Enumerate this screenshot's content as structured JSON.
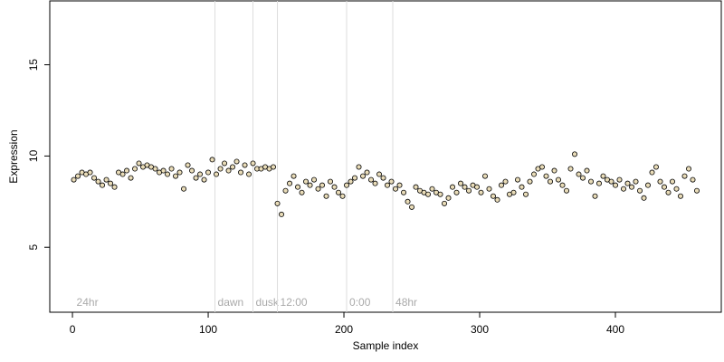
{
  "chart_data": {
    "type": "scatter",
    "xlabel": "Sample index",
    "ylabel": "Expression",
    "xlim": [
      -16.7,
      478
    ],
    "ylim": [
      1.44,
      18.5
    ],
    "xticks": [
      0,
      100,
      200,
      300,
      400
    ],
    "yticks": [
      5,
      10,
      15
    ],
    "marker_edge": "#000000",
    "marker_fill": "#e9dcb8",
    "annotation_color": "#dddddd",
    "annotations": [
      {
        "x": 1,
        "label": "24hr",
        "line": false
      },
      {
        "x": 105,
        "label": "dawn",
        "line": true
      },
      {
        "x": 133,
        "label": "dusk",
        "line": true
      },
      {
        "x": 151,
        "label": "12:00",
        "line": true
      },
      {
        "x": 202,
        "label": "0:00",
        "line": true
      },
      {
        "x": 236,
        "label": "48hr",
        "line": true
      }
    ],
    "x": [
      1,
      4,
      7,
      10,
      13,
      16,
      19,
      22,
      25,
      28,
      31,
      34,
      37,
      40,
      43,
      46,
      49,
      52,
      55,
      58,
      61,
      64,
      67,
      70,
      73,
      76,
      79,
      82,
      85,
      88,
      91,
      94,
      97,
      100,
      103,
      106,
      109,
      112,
      115,
      118,
      121,
      124,
      127,
      130,
      133,
      136,
      139,
      142,
      145,
      148,
      151,
      154,
      157,
      160,
      163,
      166,
      169,
      172,
      175,
      178,
      181,
      184,
      187,
      190,
      193,
      196,
      199,
      202,
      205,
      208,
      211,
      214,
      217,
      220,
      223,
      226,
      229,
      232,
      235,
      238,
      241,
      244,
      247,
      250,
      253,
      256,
      259,
      262,
      265,
      268,
      271,
      274,
      277,
      280,
      283,
      286,
      289,
      292,
      295,
      298,
      301,
      304,
      307,
      310,
      313,
      316,
      319,
      322,
      325,
      328,
      331,
      334,
      337,
      340,
      343,
      346,
      349,
      352,
      355,
      358,
      361,
      364,
      367,
      370,
      373,
      376,
      379,
      382,
      385,
      388,
      391,
      394,
      397,
      400,
      403,
      406,
      409,
      412,
      415,
      418,
      421,
      424,
      427,
      430,
      433,
      436,
      439,
      442,
      445,
      448,
      451,
      454,
      457,
      460
    ],
    "values": [
      8.7,
      8.9,
      9.1,
      9.0,
      9.1,
      8.8,
      8.6,
      8.4,
      8.7,
      8.5,
      8.3,
      9.1,
      9.0,
      9.2,
      8.8,
      9.3,
      9.6,
      9.4,
      9.5,
      9.4,
      9.3,
      9.1,
      9.2,
      9.0,
      9.3,
      8.9,
      9.1,
      8.2,
      9.5,
      9.2,
      8.8,
      9.0,
      8.7,
      9.1,
      9.8,
      9.0,
      9.3,
      9.6,
      9.2,
      9.4,
      9.7,
      9.1,
      9.5,
      9.0,
      9.6,
      9.3,
      9.3,
      9.4,
      9.3,
      9.4,
      7.4,
      6.8,
      8.1,
      8.5,
      8.9,
      8.3,
      8.0,
      8.6,
      8.4,
      8.7,
      8.2,
      8.4,
      7.8,
      8.6,
      8.3,
      8.0,
      7.8,
      8.4,
      8.6,
      8.8,
      9.4,
      8.9,
      9.1,
      8.7,
      8.5,
      9.0,
      8.8,
      8.4,
      8.6,
      8.2,
      8.4,
      8.0,
      7.5,
      7.2,
      8.3,
      8.1,
      8.0,
      7.9,
      8.2,
      8.0,
      7.9,
      7.4,
      7.7,
      8.3,
      8.0,
      8.5,
      8.3,
      8.1,
      8.4,
      8.3,
      8.0,
      8.9,
      8.2,
      7.8,
      7.6,
      8.4,
      8.6,
      7.9,
      8.0,
      8.7,
      8.3,
      7.9,
      8.6,
      9.0,
      9.3,
      9.4,
      8.9,
      8.6,
      9.2,
      8.7,
      8.4,
      8.1,
      9.3,
      10.1,
      9.0,
      8.8,
      9.2,
      8.6,
      7.8,
      8.5,
      8.9,
      8.7,
      8.6,
      8.4,
      8.7,
      8.2,
      8.5,
      8.3,
      8.6,
      8.1,
      7.7,
      8.4,
      9.1,
      9.4,
      8.6,
      8.3,
      8.0,
      8.6,
      8.2,
      7.8,
      8.9,
      9.3,
      8.7,
      8.1
    ]
  }
}
